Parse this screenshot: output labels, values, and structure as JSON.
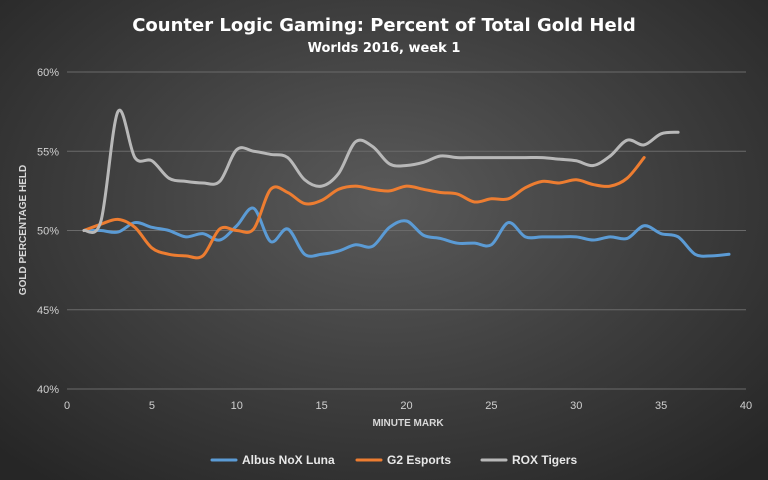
{
  "chart_data": {
    "type": "line",
    "title": "Counter Logic Gaming: Percent of Total Gold Held",
    "subtitle": "Worlds 2016, week 1",
    "xlabel": "MINUTE MARK",
    "ylabel": "GOLD PERCENTAGE HELD",
    "xlim": [
      0,
      40
    ],
    "ylim": [
      40,
      60
    ],
    "xticks": [
      0,
      5,
      10,
      15,
      20,
      25,
      30,
      35,
      40
    ],
    "yticks": [
      40,
      45,
      50,
      55,
      60
    ],
    "ytick_labels": [
      "40%",
      "45%",
      "50%",
      "55%",
      "60%"
    ],
    "grid": "horizontal",
    "legend_position": "bottom",
    "series": [
      {
        "name": "Albus NoX Luna",
        "color": "#5b9bd5",
        "x": [
          1,
          2,
          3,
          4,
          5,
          6,
          7,
          8,
          9,
          10,
          11,
          12,
          13,
          14,
          15,
          16,
          17,
          18,
          19,
          20,
          21,
          22,
          23,
          24,
          25,
          26,
          27,
          28,
          29,
          30,
          31,
          32,
          33,
          34,
          35,
          36,
          37,
          38,
          39
        ],
        "values": [
          50.0,
          50.0,
          49.9,
          50.5,
          50.2,
          50.0,
          49.6,
          49.8,
          49.4,
          50.3,
          51.4,
          49.3,
          50.1,
          48.5,
          48.5,
          48.7,
          49.1,
          49.0,
          50.2,
          50.6,
          49.7,
          49.5,
          49.2,
          49.2,
          49.1,
          50.5,
          49.6,
          49.6,
          49.6,
          49.6,
          49.4,
          49.6,
          49.5,
          50.3,
          49.8,
          49.6,
          48.5,
          48.4,
          48.5
        ]
      },
      {
        "name": "G2 Esports",
        "color": "#ed7d31",
        "x": [
          1,
          2,
          3,
          4,
          5,
          6,
          7,
          8,
          9,
          10,
          11,
          12,
          13,
          14,
          15,
          16,
          17,
          18,
          19,
          20,
          21,
          22,
          23,
          24,
          25,
          26,
          27,
          28,
          29,
          30,
          31,
          32,
          33,
          34
        ],
        "values": [
          50.0,
          50.4,
          50.7,
          50.2,
          48.9,
          48.5,
          48.4,
          48.4,
          50.1,
          50.0,
          50.1,
          52.6,
          52.4,
          51.7,
          51.9,
          52.6,
          52.8,
          52.6,
          52.5,
          52.8,
          52.6,
          52.4,
          52.3,
          51.8,
          52.0,
          52.0,
          52.7,
          53.1,
          53.0,
          53.2,
          52.9,
          52.8,
          53.3,
          54.6
        ]
      },
      {
        "name": "ROX Tigers",
        "color": "#b8b8b8",
        "x": [
          1,
          2,
          3,
          4,
          5,
          6,
          7,
          8,
          9,
          10,
          11,
          12,
          13,
          14,
          15,
          16,
          17,
          18,
          19,
          20,
          21,
          22,
          23,
          24,
          25,
          26,
          27,
          28,
          29,
          30,
          31,
          32,
          33,
          34,
          35,
          36
        ],
        "values": [
          50.0,
          50.6,
          57.5,
          54.6,
          54.4,
          53.3,
          53.1,
          53.0,
          53.1,
          55.1,
          55.0,
          54.8,
          54.6,
          53.2,
          52.8,
          53.6,
          55.6,
          55.3,
          54.2,
          54.1,
          54.3,
          54.7,
          54.6,
          54.6,
          54.6,
          54.6,
          54.6,
          54.6,
          54.5,
          54.4,
          54.1,
          54.7,
          55.7,
          55.4,
          56.1,
          56.2
        ]
      }
    ]
  }
}
